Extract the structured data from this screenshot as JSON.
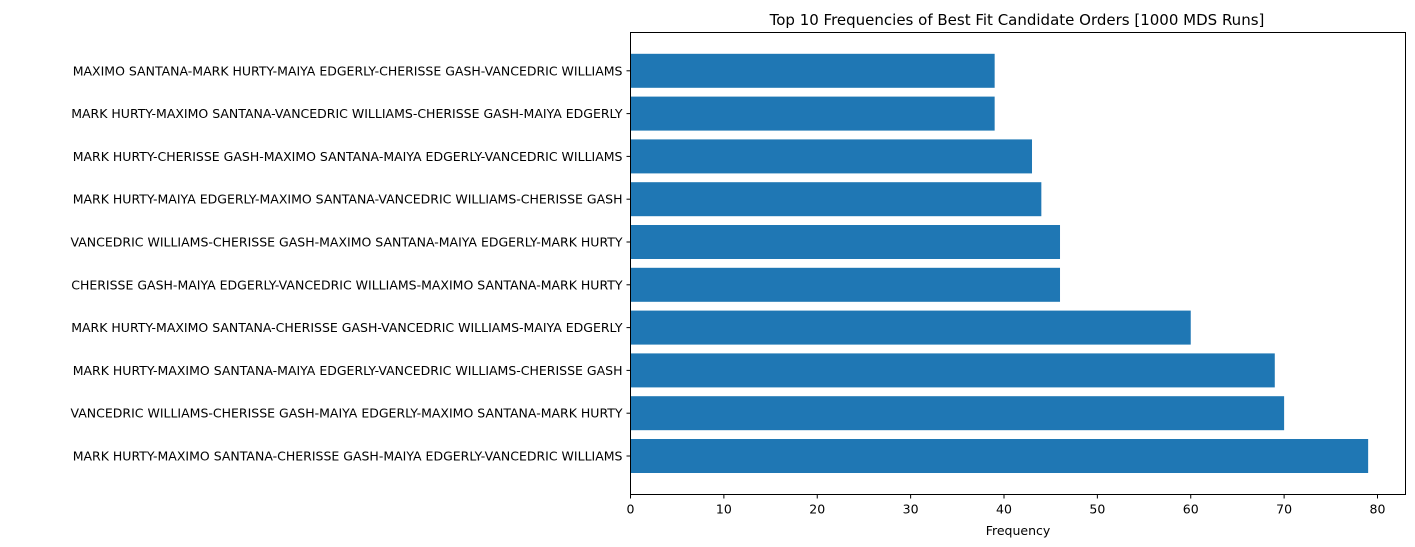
{
  "chart_data": {
    "type": "bar",
    "orientation": "horizontal",
    "title": "Top 10 Frequencies of Best Fit Candidate Orders [1000 MDS Runs]",
    "xlabel": "Frequency",
    "ylabel": "",
    "categories": [
      "MARK HURTY-MAXIMO SANTANA-CHERISSE GASH-MAIYA EDGERLY-VANCEDRIC WILLIAMS",
      "VANCEDRIC WILLIAMS-CHERISSE GASH-MAIYA EDGERLY-MAXIMO SANTANA-MARK HURTY",
      "MARK HURTY-MAXIMO SANTANA-MAIYA EDGERLY-VANCEDRIC WILLIAMS-CHERISSE GASH",
      "MARK HURTY-MAXIMO SANTANA-CHERISSE GASH-VANCEDRIC WILLIAMS-MAIYA EDGERLY",
      "CHERISSE GASH-MAIYA EDGERLY-VANCEDRIC WILLIAMS-MAXIMO SANTANA-MARK HURTY",
      "VANCEDRIC WILLIAMS-CHERISSE GASH-MAXIMO SANTANA-MAIYA EDGERLY-MARK HURTY",
      "MARK HURTY-MAIYA EDGERLY-MAXIMO SANTANA-VANCEDRIC WILLIAMS-CHERISSE GASH",
      "MARK HURTY-CHERISSE GASH-MAXIMO SANTANA-MAIYA EDGERLY-VANCEDRIC WILLIAMS",
      "MARK HURTY-MAXIMO SANTANA-VANCEDRIC WILLIAMS-CHERISSE GASH-MAIYA EDGERLY",
      "MAXIMO SANTANA-MARK HURTY-MAIYA EDGERLY-CHERISSE GASH-VANCEDRIC WILLIAMS"
    ],
    "values": [
      79,
      70,
      69,
      60,
      46,
      46,
      44,
      43,
      39,
      39
    ],
    "xlim": [
      0,
      83.0
    ],
    "xticks": [
      0,
      10,
      20,
      30,
      40,
      50,
      60,
      70,
      80
    ],
    "grid": false,
    "legend": "none",
    "bar_color": "#1f77b4"
  }
}
